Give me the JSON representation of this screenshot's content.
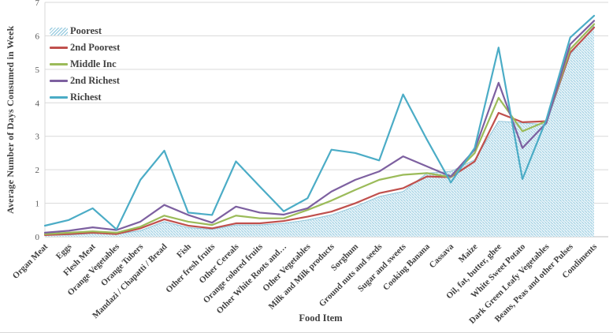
{
  "axes": {
    "x_title": "Food Item",
    "y_title": "Average Number of Days Consumed in Week"
  },
  "colors": {
    "grid": "#d9d9d9",
    "axis": "#bfbfbf",
    "tick_text": "#595959",
    "label_text": "#404040",
    "area_hatch": "#a3d1e3",
    "area_bg": "#f2f9fc",
    "area_edge": "#92c6da"
  },
  "chart_data": {
    "type": "line",
    "title": "",
    "xlabel": "Food Item",
    "ylabel": "Average Number of Days Consumed in Week",
    "ylim": [
      0,
      7
    ],
    "yticks": [
      0,
      1,
      2,
      3,
      4,
      5,
      6,
      7
    ],
    "grid": true,
    "legend_position": "top-left-inside",
    "categories": [
      "Organ Meat",
      "Eggs",
      "Flesh Meat",
      "Orange Vegetables",
      "Orange Tubers",
      "Mandazi / Chapatti / Bread",
      "Fish",
      "Other fresh fruits",
      "Other Cereals",
      "Orange colored fruits",
      "Other White Roots and…",
      "Other Vegetables",
      "Milk and Milk products",
      "Sorghum",
      "Ground nuts and seeds",
      "Sugar and sweets",
      "Cooking Banana",
      "Cassava",
      "Maize",
      "Oil, fat, butter, ghee",
      "White Sweet Potato",
      "Dark Green Leafy Vegetables",
      "Beans, Peas and other Pulses",
      "Condiments"
    ],
    "series": [
      {
        "name": "Poorest",
        "style": "area-hatch",
        "color": "#9fcfe2",
        "values": [
          0.05,
          0.05,
          0.1,
          0.08,
          0.18,
          0.45,
          0.27,
          0.22,
          0.35,
          0.35,
          0.4,
          0.5,
          0.65,
          0.9,
          1.2,
          1.35,
          1.9,
          1.95,
          2.3,
          3.45,
          3.4,
          3.35,
          5.45,
          6.3
        ]
      },
      {
        "name": "2nd Poorest",
        "style": "line",
        "color": "#c0504d",
        "values": [
          0.05,
          0.08,
          0.12,
          0.08,
          0.25,
          0.52,
          0.33,
          0.25,
          0.4,
          0.4,
          0.47,
          0.6,
          0.75,
          1.0,
          1.3,
          1.45,
          1.8,
          1.78,
          2.25,
          3.7,
          3.42,
          3.45,
          5.5,
          6.25
        ]
      },
      {
        "name": "Middle Inc",
        "style": "line",
        "color": "#9bbb59",
        "values": [
          0.08,
          0.12,
          0.16,
          0.12,
          0.3,
          0.63,
          0.45,
          0.35,
          0.63,
          0.55,
          0.55,
          0.8,
          1.08,
          1.4,
          1.7,
          1.85,
          1.9,
          1.78,
          2.5,
          4.15,
          3.15,
          3.45,
          5.6,
          6.35
        ]
      },
      {
        "name": "2nd Richest",
        "style": "line",
        "color": "#7d60a0",
        "values": [
          0.12,
          0.18,
          0.28,
          0.2,
          0.45,
          0.95,
          0.65,
          0.42,
          0.9,
          0.72,
          0.66,
          0.85,
          1.35,
          1.7,
          1.95,
          2.4,
          2.1,
          1.8,
          2.6,
          4.6,
          2.65,
          3.4,
          5.75,
          6.45
        ]
      },
      {
        "name": "Richest",
        "style": "line",
        "color": "#4bacc6",
        "values": [
          0.33,
          0.5,
          0.85,
          0.22,
          1.7,
          2.57,
          0.72,
          0.65,
          2.25,
          1.5,
          0.76,
          1.15,
          2.6,
          2.5,
          2.28,
          4.25,
          2.9,
          1.62,
          2.65,
          5.65,
          1.72,
          3.5,
          5.95,
          6.6
        ]
      }
    ]
  }
}
